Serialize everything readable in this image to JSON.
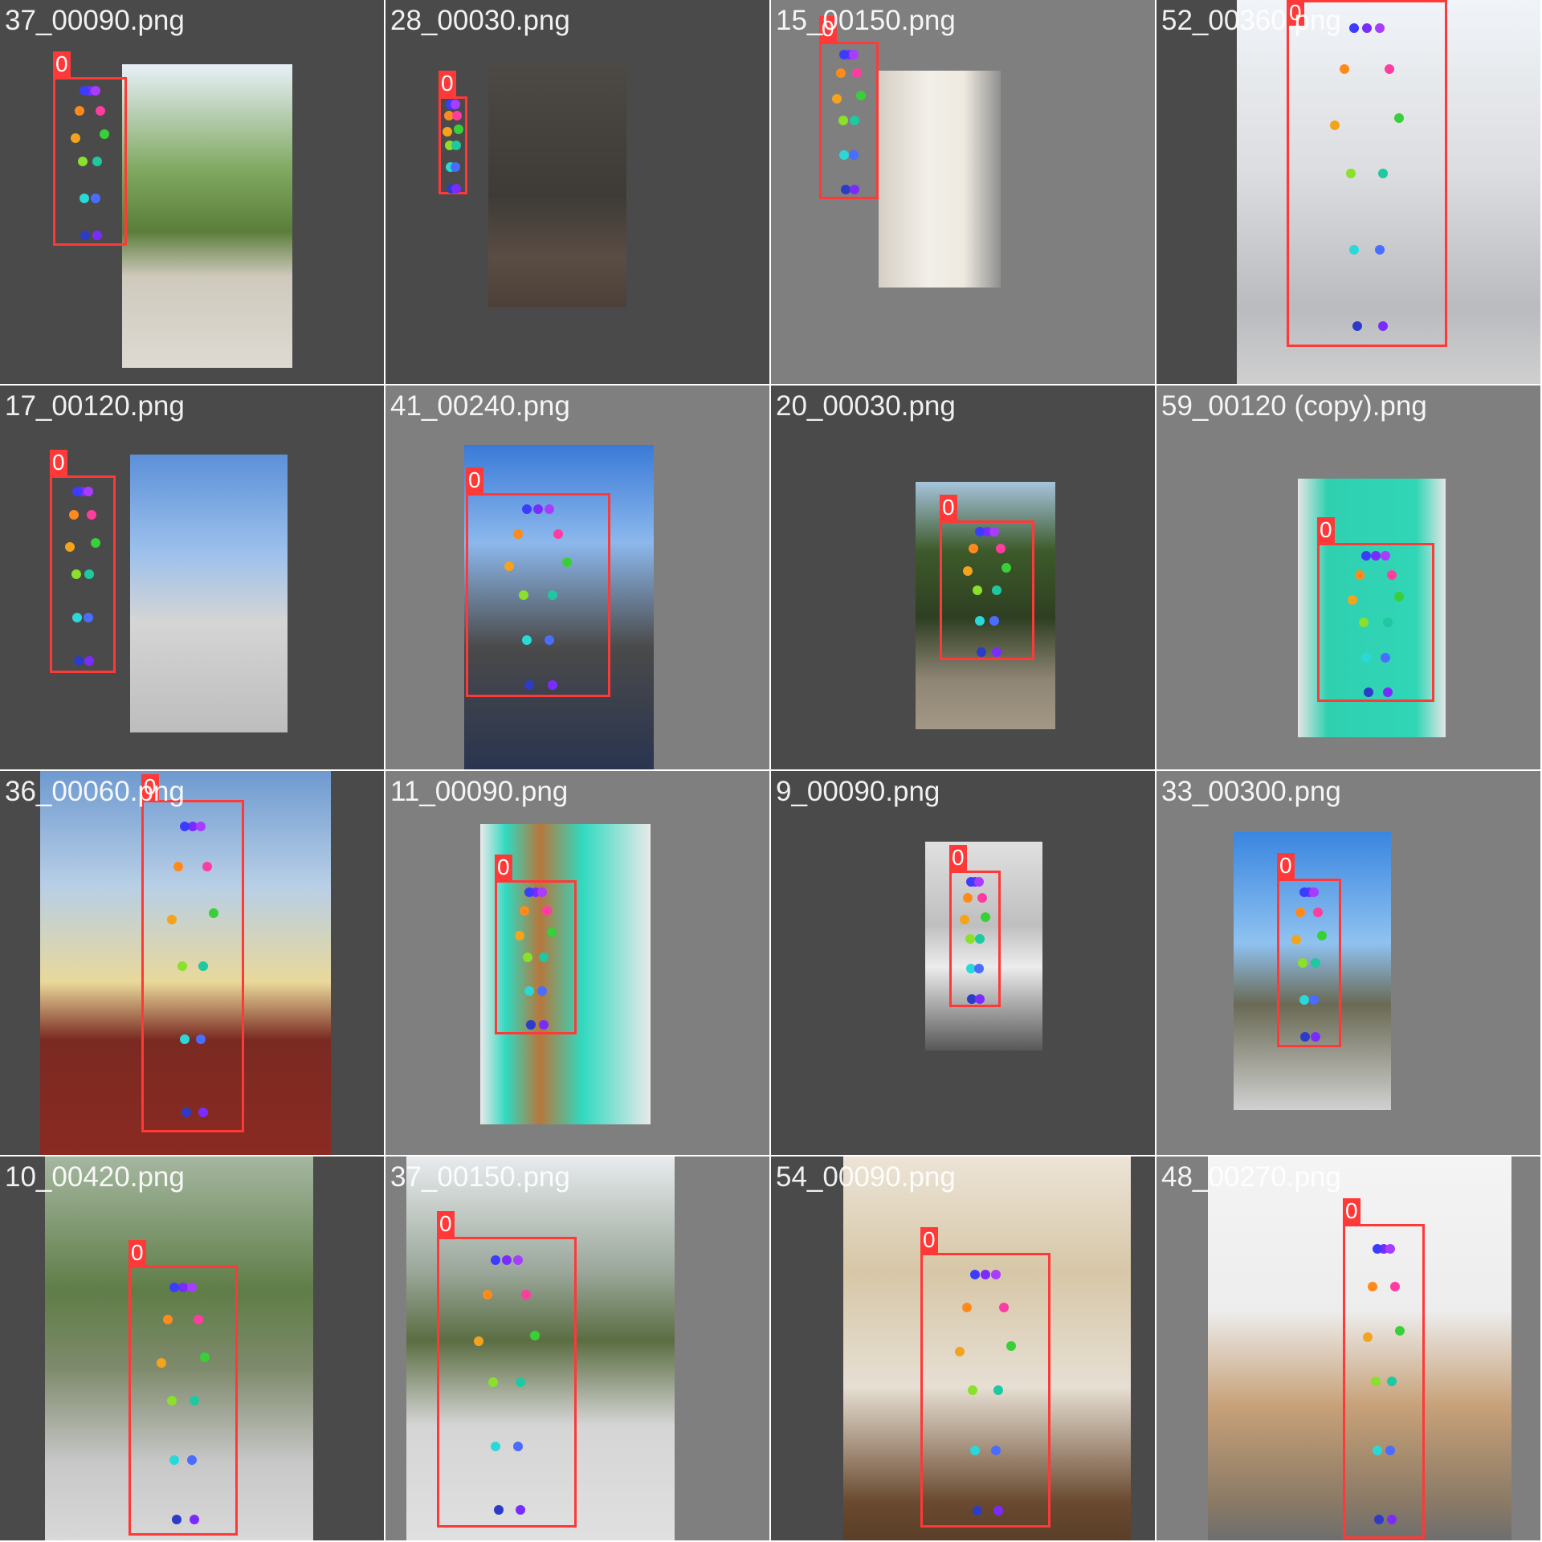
{
  "grid": {
    "columns": 4,
    "rows": 4
  },
  "colors": {
    "bbox": "#ff3838",
    "bg_light": "#7f7f7f",
    "bg_dark": "#4a4a4a",
    "keypoints": [
      "#7a2cff",
      "#3c3cff",
      "#a83cff",
      "#ff8a1c",
      "#ff3ca0",
      "#f4a31c",
      "#38d038",
      "#8ae02a",
      "#1ec8a0",
      "#2ad8d8",
      "#4a6cff",
      "#2c3cc8"
    ]
  },
  "tiles": [
    {
      "filename": "37_00090.png",
      "label": "0",
      "bg": "dark",
      "scene": "garden"
    },
    {
      "filename": "28_00030.png",
      "label": "0",
      "bg": "dark",
      "scene": "dim-room"
    },
    {
      "filename": "15_00150.png",
      "label": "0",
      "bg": "light",
      "scene": "stairs"
    },
    {
      "filename": "52_00360.png",
      "label": "0",
      "bg": "dark",
      "scene": "terrace"
    },
    {
      "filename": "17_00120.png",
      "label": "0",
      "bg": "dark",
      "scene": "terrace-sky"
    },
    {
      "filename": "41_00240.png",
      "label": "0",
      "bg": "light",
      "scene": "patio"
    },
    {
      "filename": "20_00030.png",
      "label": "0",
      "bg": "dark",
      "scene": "yard"
    },
    {
      "filename": "59_00120 (copy).png",
      "label": "0",
      "bg": "light",
      "scene": "teal-room"
    },
    {
      "filename": "36_00060.png",
      "label": "0",
      "bg": "dark",
      "scene": "court"
    },
    {
      "filename": "11_00090.png",
      "label": "0",
      "bg": "light",
      "scene": "teal-room-2"
    },
    {
      "filename": "9_00090.png",
      "label": "0",
      "bg": "dark",
      "scene": "sunny-porch"
    },
    {
      "filename": "33_00300.png",
      "label": "0",
      "bg": "light",
      "scene": "terrace-2"
    },
    {
      "filename": "10_00420.png",
      "label": "0",
      "bg": "dark",
      "scene": "rocky-garden"
    },
    {
      "filename": "37_00150.png",
      "label": "0",
      "bg": "light",
      "scene": "garden-2"
    },
    {
      "filename": "54_00090.png",
      "label": "0",
      "bg": "dark",
      "scene": "doorway"
    },
    {
      "filename": "48_00270.png",
      "label": "0",
      "bg": "light",
      "scene": "kitchen"
    }
  ]
}
